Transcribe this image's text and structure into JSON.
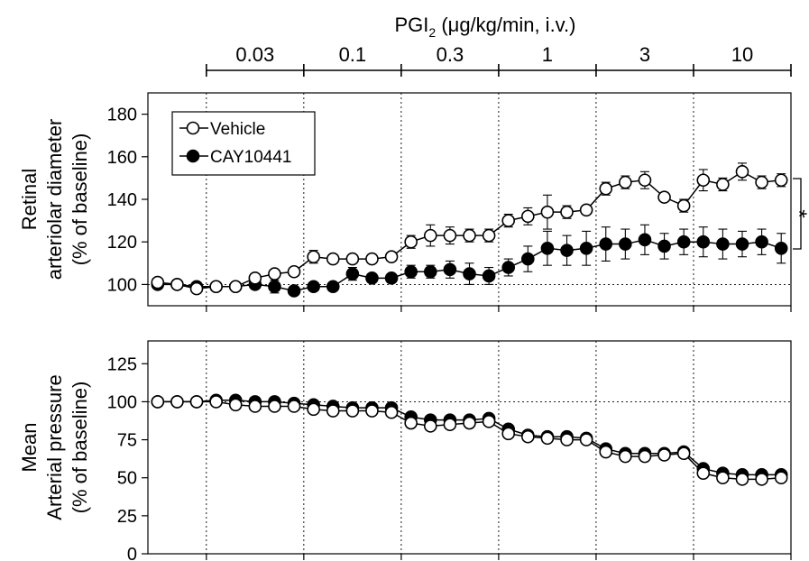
{
  "figure": {
    "dose_header": {
      "prefix": "PGI",
      "sub": "2",
      "suffix": " (μg/kg/min, i.v.)"
    },
    "doses": [
      "0.03",
      "0.1",
      "0.3",
      "1",
      "3",
      "10"
    ],
    "significance_mark": "*"
  },
  "chart_data": [
    {
      "type": "line",
      "panel": "top",
      "ylabel_lines": [
        "Retinal",
        "arteriolar diameter",
        "(% of baseline)"
      ],
      "ylim": [
        90,
        190
      ],
      "yticks": [
        100,
        120,
        140,
        160,
        180
      ],
      "reference_line": 100,
      "x": [
        0,
        1,
        2,
        3,
        4,
        5,
        6,
        7,
        8,
        9,
        10,
        11,
        12,
        13,
        14,
        15,
        16,
        17,
        18,
        19,
        20,
        21,
        22,
        23,
        24,
        25,
        26,
        27,
        28,
        29,
        30,
        31,
        32
      ],
      "xlim": [
        -0.5,
        32.5
      ],
      "dose_boundaries": [
        2.5,
        7.5,
        12.5,
        17.5,
        22.5,
        27.5,
        32.5
      ],
      "legend": {
        "placement": "top-left"
      },
      "series": [
        {
          "name": "Vehicle",
          "marker": "open-circle",
          "values": [
            101,
            100,
            98,
            99,
            99,
            103,
            105,
            106,
            113,
            112,
            112,
            112,
            113,
            120,
            123,
            123,
            123,
            123,
            130,
            132,
            134,
            134,
            135,
            145,
            148,
            149,
            141,
            137,
            149,
            147,
            153,
            148,
            149
          ],
          "errors": [
            2,
            2,
            2,
            2,
            2,
            2,
            2,
            2,
            3,
            2,
            2,
            2,
            2,
            3,
            5,
            4,
            3,
            3,
            3,
            4,
            8,
            3,
            2,
            3,
            3,
            4,
            2,
            3,
            5,
            3,
            4,
            3,
            3
          ]
        },
        {
          "name": "CAY10441",
          "marker": "filled-circle",
          "values": [
            100,
            100,
            99,
            99,
            99,
            100,
            99,
            97,
            99,
            99,
            105,
            103,
            103,
            106,
            106,
            107,
            105,
            104,
            108,
            112,
            117,
            116,
            117,
            119,
            119,
            121,
            118,
            120,
            120,
            119,
            119,
            120,
            117
          ],
          "errors": [
            2,
            2,
            2,
            2,
            2,
            2,
            3,
            2,
            2,
            2,
            3,
            2,
            2,
            3,
            3,
            4,
            5,
            4,
            4,
            6,
            8,
            7,
            8,
            8,
            7,
            7,
            6,
            6,
            7,
            7,
            6,
            6,
            7
          ]
        }
      ]
    },
    {
      "type": "line",
      "panel": "bottom",
      "ylabel_lines": [
        "Mean",
        "Arterial pressure",
        "(% of baseline)"
      ],
      "ylim": [
        0,
        140
      ],
      "yticks": [
        0,
        25,
        50,
        75,
        100,
        125
      ],
      "reference_line": 100,
      "x": [
        0,
        1,
        2,
        3,
        4,
        5,
        6,
        7,
        8,
        9,
        10,
        11,
        12,
        13,
        14,
        15,
        16,
        17,
        18,
        19,
        20,
        21,
        22,
        23,
        24,
        25,
        26,
        27,
        28,
        29,
        30,
        31,
        32
      ],
      "xlim": [
        -0.5,
        32.5
      ],
      "series": [
        {
          "name": "Vehicle",
          "marker": "open-circle",
          "values": [
            100,
            100,
            100,
            100,
            98,
            97,
            97,
            97,
            95,
            94,
            94,
            94,
            93,
            86,
            84,
            85,
            86,
            87,
            79,
            77,
            76,
            75,
            75,
            67,
            64,
            64,
            65,
            66,
            53,
            50,
            49,
            49,
            50
          ],
          "errors": [
            1,
            1,
            1,
            1,
            2,
            2,
            2,
            2,
            2,
            2,
            2,
            2,
            2,
            2,
            2,
            2,
            2,
            2,
            2,
            2,
            2,
            2,
            2,
            2,
            2,
            2,
            2,
            2,
            2,
            2,
            2,
            2,
            2
          ]
        },
        {
          "name": "CAY10441",
          "marker": "filled-circle",
          "values": [
            100,
            100,
            100,
            101,
            101,
            100,
            100,
            99,
            98,
            97,
            96,
            96,
            96,
            90,
            88,
            88,
            88,
            89,
            82,
            78,
            77,
            77,
            76,
            69,
            66,
            66,
            66,
            67,
            56,
            53,
            52,
            52,
            52
          ],
          "errors": [
            1,
            1,
            1,
            1,
            2,
            3,
            3,
            3,
            2,
            2,
            2,
            2,
            2,
            2,
            2,
            2,
            2,
            2,
            2,
            2,
            2,
            2,
            2,
            2,
            2,
            2,
            2,
            2,
            2,
            2,
            2,
            2,
            2
          ]
        }
      ]
    }
  ]
}
